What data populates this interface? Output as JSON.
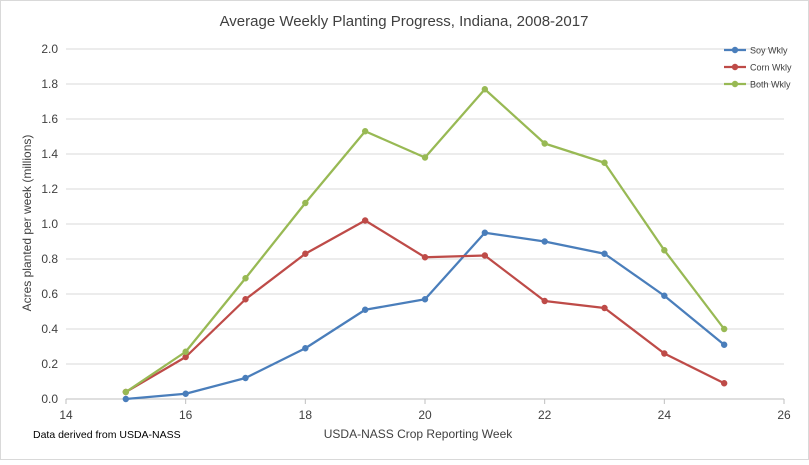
{
  "chart_data": {
    "type": "line",
    "title": "Average Weekly Planting Progress, Indiana, 2008-2017",
    "xlabel": "USDA-NASS Crop Reporting Week",
    "ylabel": "Acres planted per week (millions)",
    "source_note": "Data derived from USDA-NASS",
    "xlim": [
      14,
      26
    ],
    "ylim": [
      0,
      2.0
    ],
    "x_ticks": [
      "14",
      "16",
      "18",
      "20",
      "22",
      "24",
      "26"
    ],
    "y_ticks": [
      "0.0",
      "0.2",
      "0.4",
      "0.6",
      "0.8",
      "1.0",
      "1.2",
      "1.4",
      "1.6",
      "1.8",
      "2.0"
    ],
    "grid": "horizontal",
    "legend_position": "top-right",
    "x": [
      15,
      16,
      17,
      18,
      19,
      20,
      21,
      22,
      23,
      24,
      25
    ],
    "series": [
      {
        "name": "Soy Wkly",
        "color": "#4a7ebb",
        "values": [
          0.0,
          0.03,
          0.12,
          0.29,
          0.51,
          0.57,
          0.95,
          0.9,
          0.83,
          0.59,
          0.31
        ]
      },
      {
        "name": "Corn Wkly",
        "color": "#be4b48",
        "values": [
          0.04,
          0.24,
          0.57,
          0.83,
          1.02,
          0.81,
          0.82,
          0.56,
          0.52,
          0.26,
          0.09
        ]
      },
      {
        "name": "Both Wkly",
        "color": "#98b954",
        "values": [
          0.04,
          0.27,
          0.69,
          1.12,
          1.53,
          1.38,
          1.77,
          1.46,
          1.35,
          0.85,
          0.4
        ]
      }
    ]
  }
}
